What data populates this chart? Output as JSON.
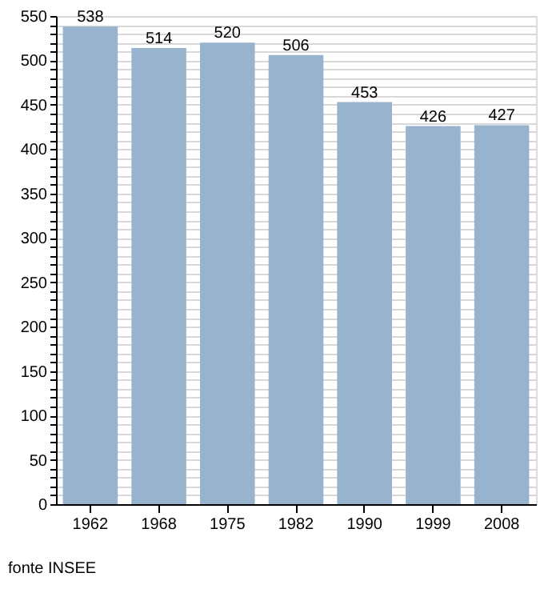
{
  "chart_data": {
    "type": "bar",
    "categories": [
      "1962",
      "1968",
      "1975",
      "1982",
      "1990",
      "1999",
      "2008"
    ],
    "values": [
      538,
      514,
      520,
      506,
      453,
      426,
      427
    ],
    "color": "#97b3cd",
    "data_labels": true,
    "ylim": [
      0,
      550
    ],
    "yticks": [
      0,
      {
        "value": 10,
        "label": null
      },
      {
        "value": 20,
        "label": null
      },
      {
        "value": 30,
        "label": null
      },
      {
        "value": 40,
        "label": null
      },
      50,
      {
        "value": 60,
        "label": null
      },
      {
        "value": 70,
        "label": null
      },
      {
        "value": 80,
        "label": null
      },
      {
        "value": 90,
        "label": null
      },
      100,
      {
        "value": 110,
        "label": null
      },
      {
        "value": 120,
        "label": null
      },
      {
        "value": 130,
        "label": null
      },
      {
        "value": 140,
        "label": null
      },
      150,
      {
        "value": 160,
        "label": null
      },
      {
        "value": 170,
        "label": null
      },
      {
        "value": 180,
        "label": null
      },
      {
        "value": 190,
        "label": null
      },
      200,
      {
        "value": 210,
        "label": null
      },
      {
        "value": 220,
        "label": null
      },
      {
        "value": 230,
        "label": null
      },
      {
        "value": 240,
        "label": null
      },
      250,
      {
        "value": 260,
        "label": null
      },
      {
        "value": 270,
        "label": null
      },
      {
        "value": 280,
        "label": null
      },
      {
        "value": 290,
        "label": null
      },
      300,
      {
        "value": 310,
        "label": null
      },
      {
        "value": 320,
        "label": null
      },
      {
        "value": 330,
        "label": null
      },
      {
        "value": 340,
        "label": null
      },
      350,
      {
        "value": 360,
        "label": null
      },
      {
        "value": 370,
        "label": null
      },
      {
        "value": 380,
        "label": null
      },
      {
        "value": 390,
        "label": null
      },
      400,
      {
        "value": 410,
        "label": null
      },
      {
        "value": 420,
        "label": null
      },
      {
        "value": 430,
        "label": null
      },
      {
        "value": 440,
        "label": null
      },
      450,
      {
        "value": 460,
        "label": null
      },
      {
        "value": 470,
        "label": null
      },
      {
        "value": 480,
        "label": null
      },
      {
        "value": 490,
        "label": null
      },
      500,
      {
        "value": 510,
        "label": null
      },
      {
        "value": 520,
        "label": null
      },
      {
        "value": 530,
        "label": null
      },
      {
        "value": 540,
        "label": null
      },
      550
    ],
    "grid": "y",
    "annotations": [
      "fonte INSEE"
    ]
  }
}
